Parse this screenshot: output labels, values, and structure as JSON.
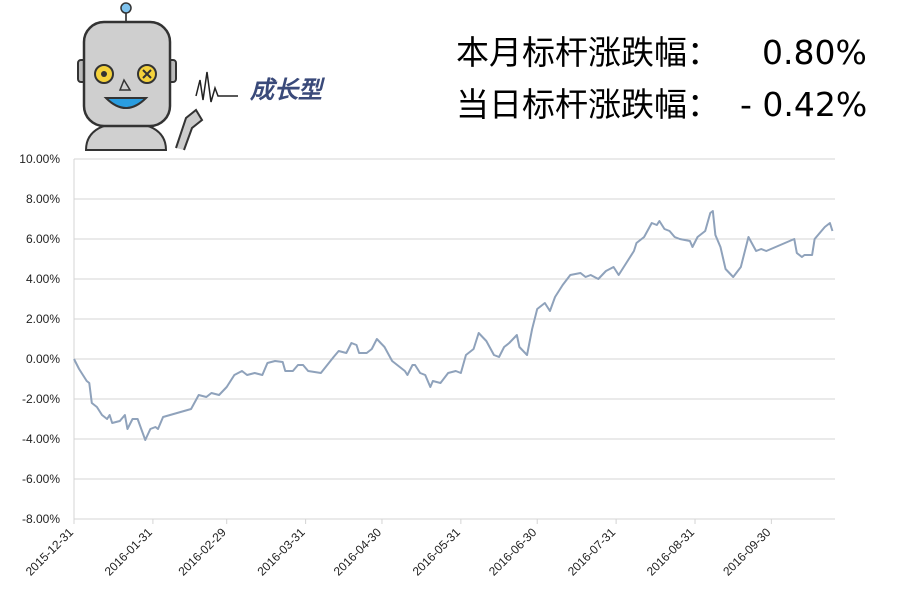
{
  "chart_data": {
    "type": "line",
    "summary": [
      {
        "label": "本月标杆涨跌幅：",
        "value": "0.80%"
      },
      {
        "label": "当日标杆涨跌幅：",
        "value": "- 0.42%"
      }
    ],
    "logo_text": "成长型",
    "x": [
      "2015-12-31",
      "2016-01-02",
      "2016-01-05",
      "2016-01-06",
      "2016-01-07",
      "2016-01-09",
      "2016-01-11",
      "2016-01-13",
      "2016-01-14",
      "2016-01-15",
      "2016-01-18",
      "2016-01-20",
      "2016-01-21",
      "2016-01-23",
      "2016-01-25",
      "2016-01-27",
      "2016-01-28",
      "2016-01-30",
      "2016-02-01",
      "2016-02-02",
      "2016-02-04",
      "2016-02-15",
      "2016-02-18",
      "2016-02-21",
      "2016-02-23",
      "2016-02-26",
      "2016-02-29",
      "2016-03-03",
      "2016-03-06",
      "2016-03-08",
      "2016-03-11",
      "2016-03-14",
      "2016-03-16",
      "2016-03-19",
      "2016-03-22",
      "2016-03-23",
      "2016-03-26",
      "2016-03-28",
      "2016-03-30",
      "2016-04-01",
      "2016-04-06",
      "2016-04-11",
      "2016-04-13",
      "2016-04-16",
      "2016-04-18",
      "2016-04-20",
      "2016-04-21",
      "2016-04-24",
      "2016-04-26",
      "2016-04-28",
      "2016-05-01",
      "2016-05-04",
      "2016-05-09",
      "2016-05-10",
      "2016-05-12",
      "2016-05-13",
      "2016-05-15",
      "2016-05-17",
      "2016-05-19",
      "2016-05-20",
      "2016-05-23",
      "2016-05-26",
      "2016-05-29",
      "2016-05-31",
      "2016-06-02",
      "2016-06-05",
      "2016-06-07",
      "2016-06-10",
      "2016-06-13",
      "2016-06-15",
      "2016-06-17",
      "2016-06-19",
      "2016-06-22",
      "2016-06-23",
      "2016-06-26",
      "2016-06-28",
      "2016-06-30",
      "2016-07-03",
      "2016-07-05",
      "2016-07-07",
      "2016-07-10",
      "2016-07-13",
      "2016-07-17",
      "2016-07-19",
      "2016-07-21",
      "2016-07-24",
      "2016-07-27",
      "2016-07-30",
      "2016-08-01",
      "2016-08-04",
      "2016-08-07",
      "2016-08-08",
      "2016-08-11",
      "2016-08-14",
      "2016-08-16",
      "2016-08-17",
      "2016-08-19",
      "2016-08-21",
      "2016-08-23",
      "2016-08-25",
      "2016-08-29",
      "2016-08-30",
      "2016-09-01",
      "2016-09-04",
      "2016-09-06",
      "2016-09-07",
      "2016-09-08",
      "2016-09-10",
      "2016-09-12",
      "2016-09-15",
      "2016-09-18",
      "2016-09-21",
      "2016-09-24",
      "2016-09-26",
      "2016-09-28",
      "2016-10-09",
      "2016-10-10",
      "2016-10-12",
      "2016-10-13",
      "2016-10-16",
      "2016-10-17",
      "2016-10-21",
      "2016-10-23",
      "2016-10-24"
    ],
    "series": [
      {
        "color": "#8fa2bb",
        "values": [
          0,
          -0.5,
          -1.1,
          -1.2,
          -2.2,
          -2.4,
          -2.8,
          -3.0,
          -2.8,
          -3.2,
          -3.1,
          -2.8,
          -3.5,
          -3.0,
          -3.0,
          -3.7,
          -4.05,
          -3.5,
          -3.4,
          -3.5,
          -2.9,
          -2.5,
          -1.8,
          -1.9,
          -1.7,
          -1.8,
          -1.4,
          -0.8,
          -0.6,
          -0.8,
          -0.7,
          -0.8,
          -0.2,
          -0.1,
          -0.15,
          -0.6,
          -0.6,
          -0.3,
          -0.3,
          -0.6,
          -0.7,
          0.1,
          0.4,
          0.3,
          0.8,
          0.7,
          0.3,
          0.3,
          0.5,
          1.0,
          0.6,
          -0.1,
          -0.6,
          -0.8,
          -0.3,
          -0.3,
          -0.7,
          -0.8,
          -1.4,
          -1.1,
          -1.2,
          -0.7,
          -0.6,
          -0.7,
          0.2,
          0.5,
          1.3,
          0.9,
          0.2,
          0.1,
          0.6,
          0.8,
          1.2,
          0.6,
          0.2,
          1.5,
          2.5,
          2.8,
          2.4,
          3.1,
          3.7,
          4.2,
          4.3,
          4.1,
          4.2,
          4.0,
          4.4,
          4.6,
          4.2,
          4.8,
          5.4,
          5.8,
          6.1,
          6.8,
          6.7,
          6.9,
          6.5,
          6.4,
          6.1,
          6.0,
          5.9,
          5.6,
          6.1,
          6.4,
          7.3,
          7.4,
          6.2,
          5.6,
          4.5,
          4.1,
          4.6,
          6.1,
          5.4,
          5.5,
          5.4,
          6.0,
          5.3,
          5.1,
          5.2,
          5.2,
          6.0,
          6.6,
          6.8,
          6.4
        ]
      }
    ],
    "xlim": [
      "2015-12-31",
      "2016-10-25"
    ],
    "xticks": [
      "2015-12-31",
      "2016-01-31",
      "2016-02-29",
      "2016-03-31",
      "2016-04-30",
      "2016-05-31",
      "2016-06-30",
      "2016-07-31",
      "2016-08-31",
      "2016-09-30"
    ],
    "ylim": [
      -8,
      10
    ],
    "yticks": [
      {
        "value": -8,
        "label": "-8.00%"
      },
      {
        "value": -6,
        "label": "-6.00%"
      },
      {
        "value": -4,
        "label": "-4.00%"
      },
      {
        "value": -2,
        "label": "-2.00%"
      },
      {
        "value": 0,
        "label": "0.00%"
      },
      {
        "value": 2,
        "label": "2.00%"
      },
      {
        "value": 4,
        "label": "4.00%"
      },
      {
        "value": 6,
        "label": "6.00%"
      },
      {
        "value": 8,
        "label": "8.00%"
      },
      {
        "value": 10,
        "label": "10.00%"
      }
    ],
    "grid": true
  }
}
